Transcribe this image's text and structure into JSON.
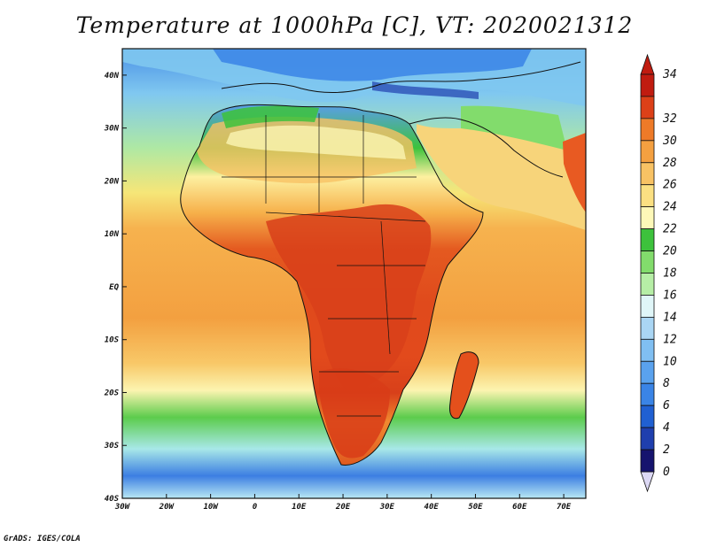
{
  "title": "Temperature at 1000hPa [C], VT: 2020021312",
  "credit": "GrADS: IGES/COLA",
  "map": {
    "lon_range": [
      -30,
      75
    ],
    "lat_range": [
      -40,
      45
    ],
    "lon_ticks": [
      {
        "value": -30,
        "label": "30W"
      },
      {
        "value": -20,
        "label": "20W"
      },
      {
        "value": -10,
        "label": "10W"
      },
      {
        "value": 0,
        "label": "0"
      },
      {
        "value": 10,
        "label": "10E"
      },
      {
        "value": 20,
        "label": "20E"
      },
      {
        "value": 30,
        "label": "30E"
      },
      {
        "value": 40,
        "label": "40E"
      },
      {
        "value": 50,
        "label": "50E"
      },
      {
        "value": 60,
        "label": "60E"
      },
      {
        "value": 70,
        "label": "70E"
      }
    ],
    "lat_ticks": [
      {
        "value": 40,
        "label": "40N"
      },
      {
        "value": 30,
        "label": "30N"
      },
      {
        "value": 20,
        "label": "20N"
      },
      {
        "value": 10,
        "label": "10N"
      },
      {
        "value": 0,
        "label": "EQ"
      },
      {
        "value": -10,
        "label": "10S"
      },
      {
        "value": -20,
        "label": "20S"
      },
      {
        "value": -30,
        "label": "30S"
      },
      {
        "value": -40,
        "label": "40S"
      }
    ]
  },
  "colorbar": {
    "levels": [
      0,
      2,
      4,
      6,
      8,
      10,
      12,
      14,
      16,
      18,
      20,
      22,
      24,
      26,
      28,
      30,
      32,
      34
    ],
    "labels": [
      "0",
      "2",
      "4",
      "6",
      "8",
      "10",
      "12",
      "14",
      "16",
      "18",
      "20",
      "22",
      "24",
      "26",
      "28",
      "30",
      "32",
      "34"
    ],
    "colors": [
      "#16146e",
      "#1f3fae",
      "#2060d2",
      "#3a84e6",
      "#5aa2ee",
      "#80bff2",
      "#aad6f4",
      "#e0f6f8",
      "#b6eea6",
      "#82dc6c",
      "#3dc23c",
      "#fdf8b8",
      "#fbe082",
      "#f8c264",
      "#f4a040",
      "#ee7a28",
      "#dc4018",
      "#c01c10"
    ],
    "under_color": "#dcd8f4",
    "over_color": "#c01c10"
  }
}
